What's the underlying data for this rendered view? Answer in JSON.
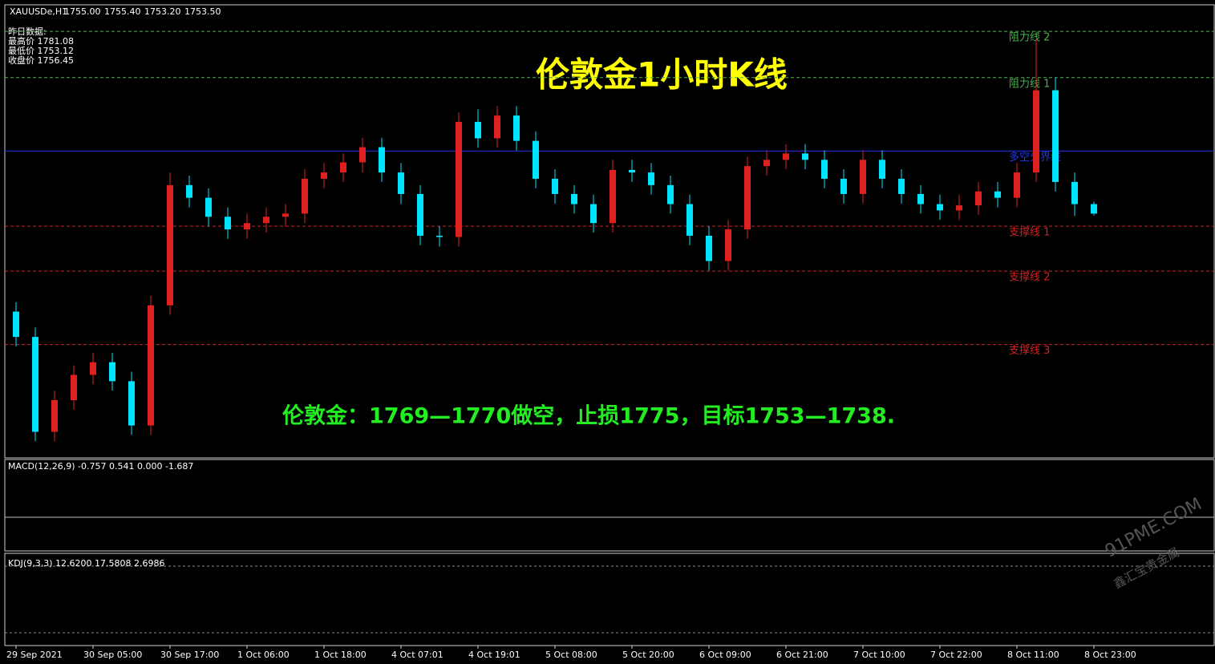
{
  "header": {
    "symbol": "XAUUSDe,H1",
    "ohlc": [
      "1755.00",
      "1755.40",
      "1753.20",
      "1753.50"
    ]
  },
  "yesterday": {
    "title": "昨日数据:",
    "lines": [
      "最高价 1781.08",
      "最低价 1753.12",
      "收盘价 1756.45"
    ]
  },
  "macd_label": "MACD(12,26,9) -0.757 0.541 0.000 -1.687",
  "kdj_label": "KDJ(9,3,3) 12.6200 17.5808 2.6986",
  "watermark": {
    "site": "91PME.COM",
    "brand": "鑫汇宝贵金属"
  },
  "chart_data": {
    "type": "candlestick",
    "title": "伦敦金1小时K线",
    "annotation": "伦敦金：1769—1770做空，止损1775，目标1753—1738.",
    "ylim": [
      1715,
      1786
    ],
    "up_color": "#e02020",
    "down_color": "#00e5ff",
    "levels": [
      {
        "name": "阻力线 2",
        "value": 1782.3,
        "color": "#4caf50",
        "style": "dashed"
      },
      {
        "name": "阻力线 1",
        "value": 1775,
        "color": "#4caf50",
        "style": "dashed"
      },
      {
        "name": "多空分界线",
        "value": 1763.4,
        "color": "#2233ee",
        "style": "solid"
      },
      {
        "name": "支撑线 1",
        "value": 1751.5,
        "color": "#d02020",
        "style": "dashed"
      },
      {
        "name": "支撑线 2",
        "value": 1744.4,
        "color": "#d02020",
        "style": "dashed"
      },
      {
        "name": "支撑线 3",
        "value": 1732.8,
        "color": "#d02020",
        "style": "dashed"
      }
    ],
    "categories": [
      "29 Sep 2021",
      null,
      null,
      null,
      "30 Sep 05:00",
      null,
      null,
      null,
      "30 Sep 17:00",
      null,
      null,
      null,
      "1 Oct 06:00",
      null,
      null,
      null,
      "1 Oct 18:00",
      null,
      null,
      null,
      "4 Oct 07:01",
      null,
      null,
      null,
      "4 Oct 19:01",
      null,
      null,
      null,
      "5 Oct 08:00",
      null,
      null,
      null,
      "5 Oct 20:00",
      null,
      null,
      null,
      "6 Oct 09:00",
      null,
      null,
      null,
      "6 Oct 21:00",
      null,
      null,
      null,
      "7 Oct 10:00",
      null,
      null,
      null,
      "7 Oct 22:00",
      null,
      null,
      null,
      "8 Oct 11:00",
      null,
      null,
      null,
      "8 Oct 23:00"
    ],
    "open": [
      1738,
      1734,
      1719,
      1724,
      1728,
      1730,
      1727,
      1720,
      1739,
      1758,
      1756,
      1753,
      1751,
      1752,
      1753,
      1753.5,
      1759,
      1760,
      1761.6,
      1764,
      1760,
      1756.6,
      1750,
      1749.8,
      1768,
      1765.4,
      1769,
      1765,
      1759,
      1756.6,
      1755,
      1752,
      1760.4,
      1760,
      1758,
      1755,
      1750,
      1746,
      1751,
      1761,
      1762,
      1763,
      1762,
      1759,
      1756.6,
      1762,
      1759,
      1756.6,
      1755,
      1754,
      1754.8,
      1757,
      1756,
      1760,
      1773,
      1758.5,
      1755
    ],
    "high": [
      1739.5,
      1735.5,
      1725.5,
      1729.5,
      1731.5,
      1731.5,
      1728.5,
      1740.5,
      1760,
      1759.5,
      1757.5,
      1754.5,
      1753.5,
      1754.5,
      1755,
      1760.5,
      1761.5,
      1763,
      1765.5,
      1765.5,
      1761.5,
      1758,
      1751.5,
      1769.5,
      1770,
      1770.5,
      1770.5,
      1766.5,
      1760.5,
      1758,
      1756.5,
      1762,
      1762,
      1761.5,
      1759.5,
      1756.5,
      1751.5,
      1752.5,
      1762.5,
      1763.5,
      1764.5,
      1764.5,
      1763.5,
      1760.5,
      1763.5,
      1763.5,
      1760.5,
      1758,
      1756.5,
      1756.5,
      1758.5,
      1758.5,
      1761.5,
      1781.1,
      1775,
      1760,
      1755.4
    ],
    "low": [
      1732.5,
      1717.5,
      1717.5,
      1722.5,
      1726.5,
      1725.5,
      1718.5,
      1718.5,
      1737.5,
      1754.5,
      1751.5,
      1749.5,
      1749.5,
      1750.5,
      1751.5,
      1752,
      1757.5,
      1758.5,
      1760,
      1758.5,
      1755,
      1748.5,
      1748.3,
      1748.3,
      1763.9,
      1763.9,
      1763.5,
      1757.5,
      1755.1,
      1753.5,
      1750.5,
      1750.5,
      1758.5,
      1756.5,
      1753.5,
      1748.5,
      1744.5,
      1744.5,
      1749.5,
      1759.5,
      1760.5,
      1760.5,
      1757.5,
      1755.1,
      1755.1,
      1757.5,
      1755.1,
      1753.5,
      1752.5,
      1752.5,
      1753.3,
      1754.5,
      1754.5,
      1758.5,
      1757,
      1753.1,
      1753.2
    ],
    "close": [
      1734,
      1719,
      1724,
      1728,
      1730,
      1727,
      1720,
      1739,
      1758,
      1756,
      1753,
      1751,
      1752,
      1753,
      1753.5,
      1759,
      1760,
      1761.6,
      1764,
      1760,
      1756.6,
      1750,
      1749.8,
      1768,
      1765.4,
      1769,
      1765,
      1759,
      1756.6,
      1755,
      1752,
      1760.4,
      1760,
      1758,
      1755,
      1750,
      1746,
      1751,
      1761,
      1762,
      1763,
      1762,
      1759,
      1756.6,
      1762,
      1759,
      1756.6,
      1755,
      1754,
      1754.8,
      1757,
      1756,
      1760,
      1773,
      1758.5,
      1755,
      1753.5
    ]
  }
}
